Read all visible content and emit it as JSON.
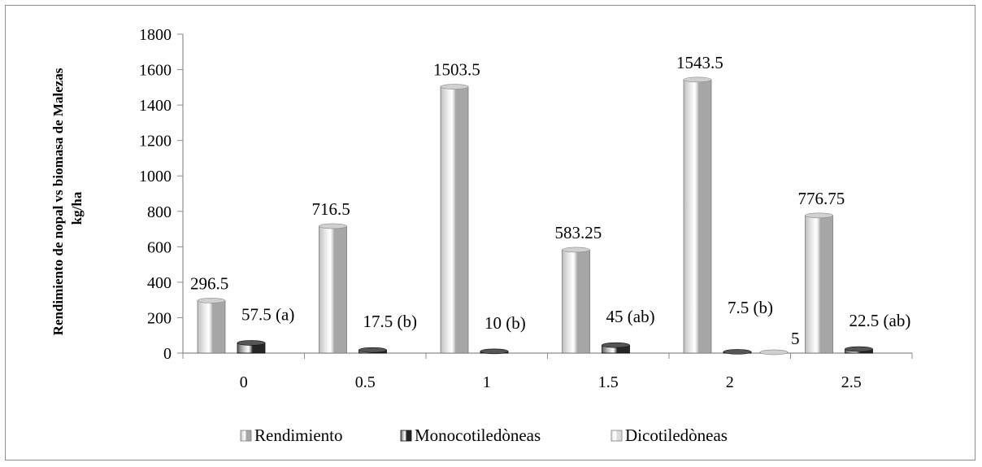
{
  "chart_data": {
    "type": "bar",
    "title": "",
    "xlabel": "",
    "ylabel": "Rendimiento de nopal vs biomasa de Malezas",
    "ylabel_unit": "kg/ha",
    "categories": [
      "0",
      "0.5",
      "1",
      "1.5",
      "2",
      "2.5"
    ],
    "ylim": [
      0,
      1800
    ],
    "yticks": [
      0,
      200,
      400,
      600,
      800,
      1000,
      1200,
      1400,
      1600,
      1800
    ],
    "grid": false,
    "legend_position": "bottom",
    "series": [
      {
        "name": "Rendimiento",
        "values": [
          296.5,
          716.5,
          1503.5,
          583.25,
          1543.5,
          776.75
        ],
        "labels": [
          "296.5",
          "716.5",
          "1503.5",
          "583.25",
          "1543.5",
          "776.75"
        ],
        "color": "#a6a6a6"
      },
      {
        "name": "Monocotiledòneas",
        "values": [
          57.5,
          17.5,
          10,
          45,
          7.5,
          22.5
        ],
        "labels": [
          "57.5 (a)",
          "17.5 (b)",
          "10 (b)",
          "45 (ab)",
          "7.5 (b)",
          "22.5 (ab)"
        ],
        "color": "#262626"
      },
      {
        "name": "Dicotiledòneas",
        "values": [
          0,
          0,
          0,
          0,
          5,
          0
        ],
        "labels": [
          "",
          "",
          "",
          "",
          "5",
          ""
        ],
        "color": "#d9d9d9"
      }
    ]
  }
}
